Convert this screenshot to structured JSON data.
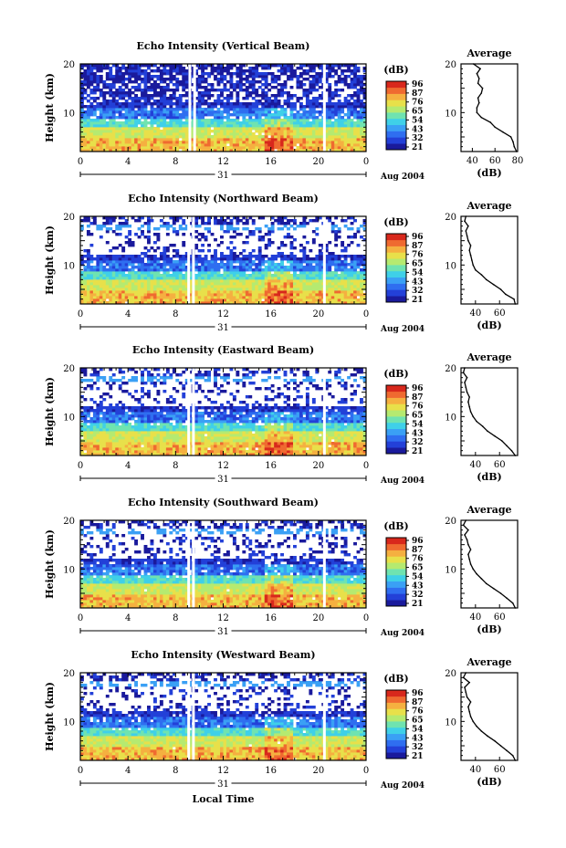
{
  "chart_data": [
    {
      "type": "heatmap",
      "title": "Echo Intensity (Vertical Beam)",
      "ylabel": "Height (km)",
      "ylim": [
        2,
        20
      ],
      "x_ticks": [
        "0",
        "4",
        "8",
        "12",
        "16",
        "20",
        "0"
      ],
      "date_marker": "31",
      "date_label": "Aug 2004",
      "gaps_hours": [
        9.2,
        9.6,
        20.5
      ],
      "colorbar": {
        "unit": "(dB)",
        "ticks": [
          "96",
          "87",
          "76",
          "65",
          "54",
          "43",
          "32",
          "21"
        ]
      },
      "profile": {
        "title": "Average",
        "xlabel": "(dB)",
        "x_ticks": [
          "40",
          "60",
          "80"
        ],
        "xlim": [
          30,
          80
        ],
        "y_ticks": [
          "20",
          "10"
        ],
        "heights": [
          2,
          3,
          4,
          5,
          6,
          7,
          8,
          9,
          10,
          11,
          12,
          13,
          14,
          15,
          16,
          17,
          18,
          19,
          20
        ],
        "values": [
          79,
          77,
          76,
          74,
          67,
          60,
          56,
          48,
          44,
          44,
          46,
          45,
          48,
          49,
          45,
          46,
          44,
          47,
          41
        ]
      }
    },
    {
      "type": "heatmap",
      "title": "Echo Intensity (Northward Beam)",
      "ylabel": "Height (km)",
      "ylim": [
        2,
        20
      ],
      "x_ticks": [
        "0",
        "4",
        "8",
        "12",
        "16",
        "20",
        "0"
      ],
      "date_marker": "31",
      "date_label": "Aug 2004",
      "gaps_hours": [
        9.1,
        9.5,
        20.5
      ],
      "colorbar": {
        "unit": "(dB)",
        "ticks": [
          "96",
          "87",
          "76",
          "65",
          "54",
          "43",
          "32",
          "21"
        ]
      },
      "profile": {
        "title": "Average",
        "xlabel": "(dB)",
        "x_ticks": [
          "40",
          "60"
        ],
        "xlim": [
          28,
          75
        ],
        "y_ticks": [
          "20",
          "10"
        ],
        "heights": [
          2,
          3,
          4,
          5,
          6,
          7,
          8,
          9,
          10,
          11,
          12,
          13,
          14,
          15,
          16,
          17,
          18,
          19,
          20
        ],
        "values": [
          73,
          72,
          65,
          61,
          55,
          49,
          45,
          40,
          38,
          37,
          36,
          35,
          36,
          34,
          33,
          32,
          34,
          31,
          32
        ]
      }
    },
    {
      "type": "heatmap",
      "title": "Echo Intensity (Eastward Beam)",
      "ylabel": "Height (km)",
      "ylim": [
        2,
        20
      ],
      "x_ticks": [
        "0",
        "4",
        "8",
        "12",
        "16",
        "20",
        "0"
      ],
      "date_marker": "31",
      "date_label": "Aug 2004",
      "gaps_hours": [
        9.1,
        9.5,
        20.5
      ],
      "colorbar": {
        "unit": "(dB)",
        "ticks": [
          "96",
          "87",
          "76",
          "65",
          "54",
          "43",
          "32",
          "21"
        ]
      },
      "profile": {
        "title": "Average",
        "xlabel": "(dB)",
        "x_ticks": [
          "40",
          "60"
        ],
        "xlim": [
          28,
          75
        ],
        "y_ticks": [
          "20",
          "10"
        ],
        "heights": [
          2,
          3,
          4,
          5,
          6,
          7,
          8,
          9,
          10,
          11,
          12,
          13,
          14,
          15,
          16,
          17,
          18,
          19,
          20
        ],
        "values": [
          73,
          70,
          66,
          62,
          56,
          50,
          46,
          41,
          38,
          36,
          35,
          34,
          35,
          33,
          32,
          31,
          33,
          30,
          31
        ]
      }
    },
    {
      "type": "heatmap",
      "title": "Echo Intensity (Southward Beam)",
      "ylabel": "Height (km)",
      "ylim": [
        2,
        20
      ],
      "x_ticks": [
        "0",
        "4",
        "8",
        "12",
        "16",
        "20",
        "0"
      ],
      "date_marker": "31",
      "date_label": "Aug 2004",
      "gaps_hours": [
        9.1,
        9.5,
        20.5
      ],
      "colorbar": {
        "unit": "(dB)",
        "ticks": [
          "96",
          "87",
          "76",
          "65",
          "54",
          "43",
          "32",
          "21"
        ]
      },
      "profile": {
        "title": "Average",
        "xlabel": "(dB)",
        "x_ticks": [
          "40",
          "60"
        ],
        "xlim": [
          28,
          75
        ],
        "y_ticks": [
          "20",
          "10"
        ],
        "heights": [
          2,
          3,
          4,
          5,
          6,
          7,
          8,
          9,
          10,
          11,
          12,
          13,
          14,
          15,
          16,
          17,
          18,
          19,
          20
        ],
        "values": [
          73,
          71,
          66,
          61,
          55,
          49,
          45,
          41,
          38,
          36,
          35,
          34,
          36,
          34,
          33,
          31,
          34,
          30,
          32
        ]
      }
    },
    {
      "type": "heatmap",
      "title": "Echo Intensity (Westward Beam)",
      "ylabel": "Height (km)",
      "ylim": [
        2,
        20
      ],
      "x_ticks": [
        "0",
        "4",
        "8",
        "12",
        "16",
        "20",
        "0"
      ],
      "date_marker": "31",
      "date_label": "Aug 2004",
      "gaps_hours": [
        9.1,
        9.5,
        20.5
      ],
      "colorbar": {
        "unit": "(dB)",
        "ticks": [
          "96",
          "87",
          "76",
          "65",
          "54",
          "43",
          "32",
          "21"
        ]
      },
      "profile": {
        "title": "Average",
        "xlabel": "(dB)",
        "x_ticks": [
          "40",
          "60"
        ],
        "xlim": [
          28,
          75
        ],
        "y_ticks": [
          "20",
          "10"
        ],
        "heights": [
          2,
          3,
          4,
          5,
          6,
          7,
          8,
          9,
          10,
          11,
          12,
          13,
          14,
          15,
          16,
          17,
          18,
          19,
          20
        ],
        "values": [
          73,
          71,
          66,
          61,
          56,
          50,
          45,
          41,
          38,
          36,
          35,
          34,
          36,
          33,
          32,
          31,
          35,
          30,
          32
        ]
      }
    }
  ],
  "xlabel": "Local Time",
  "palette": [
    "#1a1a9c",
    "#2340d8",
    "#2f6ef0",
    "#3aa0f5",
    "#3fd0e8",
    "#6fe3b0",
    "#b5ea70",
    "#e8e04a",
    "#f5b040",
    "#ef6a30",
    "#d8281c"
  ]
}
